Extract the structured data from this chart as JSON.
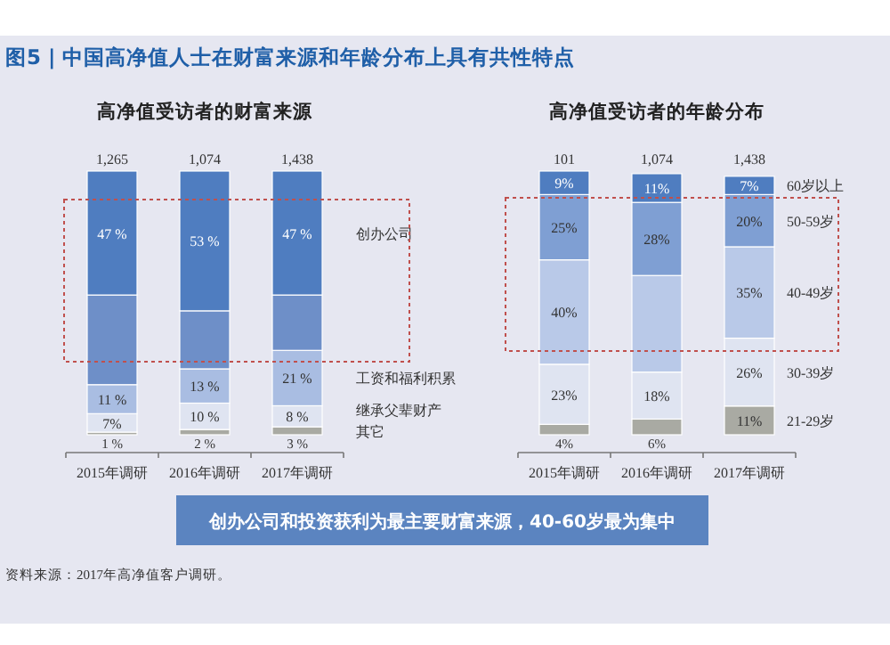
{
  "chart_data": [
    {
      "type": "bar",
      "title": "高净值受访者的财富来源",
      "categories": [
        "2015年调研",
        "2016年调研",
        "2017年调研"
      ],
      "stacked": true,
      "annotations": [
        "1,265",
        "1,074",
        "1,438"
      ],
      "series": [
        {
          "name": "其它",
          "color": "#a9aaa3",
          "values": [
            1,
            2,
            3
          ],
          "value_labels": [
            "1 %",
            "2 %",
            "3 %"
          ]
        },
        {
          "name": "继承父辈财产",
          "color": "#dfe4f1",
          "values": [
            7,
            10,
            8
          ],
          "value_labels": [
            "7%",
            "10 %",
            "8 %"
          ]
        },
        {
          "name": "工资和福利积累",
          "color": "#a9bde2",
          "values": [
            11,
            13,
            21
          ],
          "value_labels": [
            "11 %",
            "13 %",
            "21 %"
          ]
        },
        {
          "color": "#6e8fc8",
          "values": [
            34,
            22,
            21
          ],
          "value_labels": [
            null,
            null,
            null
          ]
        },
        {
          "name": "创办公司",
          "color": "#4f7dc0",
          "values": [
            47,
            53,
            47
          ],
          "value_labels": [
            "47 %",
            "53 %",
            "47 %"
          ]
        }
      ]
    },
    {
      "type": "bar",
      "title": "高净值受访者的年龄分布",
      "categories": [
        "2015年调研",
        "2016年调研",
        "2017年调研"
      ],
      "stacked": true,
      "annotations": [
        "101",
        "1,074",
        "1,438"
      ],
      "series": [
        {
          "name": "21-29岁",
          "color": "#a9aaa3",
          "values": [
            4,
            6,
            11
          ],
          "value_labels": [
            "4%",
            "6%",
            "11%"
          ]
        },
        {
          "name": "30-39岁",
          "color": "#dfe4f1",
          "values": [
            23,
            18,
            26
          ],
          "value_labels": [
            "23%",
            "18%",
            "26%"
          ]
        },
        {
          "name": "40-49岁",
          "color": "#b9c9e8",
          "values": [
            40,
            37,
            35
          ],
          "value_labels": [
            "40%",
            null,
            "35%"
          ]
        },
        {
          "name": "50-59岁",
          "color": "#7f9fd3",
          "values": [
            25,
            28,
            20
          ],
          "value_labels": [
            "25%",
            "28%",
            "20%"
          ]
        },
        {
          "name": "60岁以上",
          "color": "#4f7dc0",
          "values": [
            9,
            11,
            7
          ],
          "value_labels": [
            "9%",
            "11%",
            "7%"
          ]
        }
      ]
    },
    {
      "type": "other",
      "title": "图5 | 中国高净值人士在财富来源和年龄分布上具有共性特点",
      "annotations": [
        "创办公司和投资获利为最主要财富来源，40-60岁最为集中",
        "资料来源：2017年高净值客户调研。"
      ]
    }
  ]
}
